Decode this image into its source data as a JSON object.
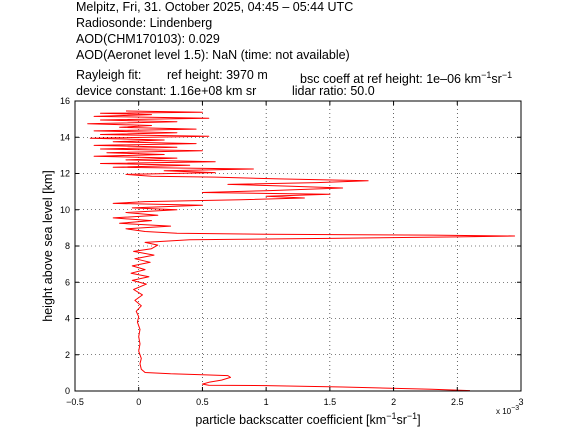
{
  "header": {
    "line1": "Melpitz, Fri, 31. October 2025, 04:45 – 05:44 UTC",
    "line2": "Radiosonde: Lindenberg",
    "line3": "AOD(CHM170103): 0.029",
    "line4": "AOD(Aeronet level 1.5): NaN   (time: not available)",
    "rayleigh_label": "Rayleigh fit:",
    "ref_height": "ref height: 3970 m",
    "bsc_coeff": "bsc coeff at ref height: 1e–06 km",
    "bsc_unit_km_exp": "−1",
    "bsc_unit_sr": "sr",
    "bsc_unit_sr_exp": "−1",
    "device_constant": "device constant: 1.16e+08 km sr",
    "lidar_ratio": "lidar ratio: 50.0"
  },
  "chart_data": {
    "type": "line",
    "xlabel_main": "particle backscatter coefficient [km",
    "xlabel_exp1": "−1",
    "xlabel_sr": "sr",
    "xlabel_exp2": "−1",
    "xlabel_close": "]",
    "x_multiplier": "x 10",
    "x_multiplier_exp": "−3",
    "ylabel": "height above sea level [km]",
    "xlim": [
      -0.5,
      3
    ],
    "ylim": [
      0,
      16
    ],
    "grid": true,
    "series_color": "#ff0000",
    "x_ticks": [
      "−0.5",
      "0",
      "0.5",
      "1",
      "1.5",
      "2",
      "2.5",
      "3"
    ],
    "y_ticks": [
      "0",
      "2",
      "4",
      "6",
      "8",
      "10",
      "12",
      "14",
      "16"
    ],
    "series": [
      {
        "points": [
          [
            2.6,
            0.02
          ],
          [
            2.3,
            0.1
          ],
          [
            1.6,
            0.22
          ],
          [
            1.0,
            0.3
          ],
          [
            0.55,
            0.32
          ],
          [
            0.5,
            0.38
          ],
          [
            0.55,
            0.48
          ],
          [
            0.65,
            0.6
          ],
          [
            0.72,
            0.75
          ],
          [
            0.7,
            0.85
          ],
          [
            0.5,
            0.9
          ],
          [
            0.25,
            0.95
          ],
          [
            0.05,
            1.02
          ],
          [
            0.02,
            1.2
          ],
          [
            0.01,
            1.5
          ],
          [
            0.02,
            1.8
          ],
          [
            0.0,
            2.2
          ],
          [
            0.01,
            2.6
          ],
          [
            0.0,
            3.0
          ],
          [
            0.01,
            3.4
          ],
          [
            -0.01,
            3.8
          ],
          [
            0.0,
            4.1
          ],
          [
            -0.02,
            4.4
          ],
          [
            0.02,
            4.7
          ],
          [
            -0.03,
            5.0
          ],
          [
            0.03,
            5.3
          ],
          [
            -0.04,
            5.6
          ],
          [
            0.06,
            5.9
          ],
          [
            -0.05,
            6.1
          ],
          [
            0.08,
            6.3
          ],
          [
            -0.06,
            6.5
          ],
          [
            0.05,
            6.7
          ],
          [
            -0.05,
            6.9
          ],
          [
            0.09,
            7.1
          ],
          [
            -0.03,
            7.3
          ],
          [
            0.12,
            7.5
          ],
          [
            -0.04,
            7.7
          ],
          [
            0.1,
            7.85
          ],
          [
            0.15,
            8.05
          ],
          [
            0.05,
            8.2
          ],
          [
            0.4,
            8.35
          ],
          [
            1.5,
            8.42
          ],
          [
            2.5,
            8.5
          ],
          [
            2.95,
            8.55
          ],
          [
            2.3,
            8.6
          ],
          [
            1.0,
            8.65
          ],
          [
            0.3,
            8.7
          ],
          [
            0.05,
            8.8
          ],
          [
            -0.1,
            8.95
          ],
          [
            0.25,
            9.1
          ],
          [
            -0.15,
            9.25
          ],
          [
            0.1,
            9.4
          ],
          [
            -0.2,
            9.55
          ],
          [
            0.15,
            9.7
          ],
          [
            -0.1,
            9.85
          ],
          [
            0.3,
            10.0
          ],
          [
            -0.05,
            10.1
          ],
          [
            0.5,
            10.25
          ],
          [
            -0.2,
            10.35
          ],
          [
            0.05,
            10.45
          ],
          [
            0.8,
            10.55
          ],
          [
            1.3,
            10.65
          ],
          [
            1.0,
            10.75
          ],
          [
            1.5,
            10.85
          ],
          [
            0.5,
            10.95
          ],
          [
            1.0,
            11.05
          ],
          [
            1.6,
            11.2
          ],
          [
            1.2,
            11.3
          ],
          [
            0.7,
            11.4
          ],
          [
            1.4,
            11.5
          ],
          [
            1.8,
            11.6
          ],
          [
            1.1,
            11.7
          ],
          [
            0.6,
            11.8
          ],
          [
            0.1,
            11.85
          ],
          [
            -0.1,
            11.95
          ],
          [
            0.6,
            12.05
          ],
          [
            0.2,
            12.15
          ],
          [
            0.9,
            12.25
          ],
          [
            -0.2,
            12.35
          ],
          [
            0.4,
            12.45
          ],
          [
            -0.3,
            12.55
          ],
          [
            0.6,
            12.65
          ],
          [
            -0.1,
            12.75
          ],
          [
            0.3,
            12.85
          ],
          [
            -0.35,
            12.95
          ],
          [
            0.2,
            13.05
          ],
          [
            -0.25,
            13.15
          ],
          [
            0.5,
            13.25
          ],
          [
            -0.3,
            13.35
          ],
          [
            0.3,
            13.45
          ],
          [
            -0.35,
            13.55
          ],
          [
            0.45,
            13.65
          ],
          [
            -0.2,
            13.75
          ],
          [
            0.2,
            13.85
          ],
          [
            -0.38,
            13.95
          ],
          [
            0.55,
            14.05
          ],
          [
            -0.3,
            14.15
          ],
          [
            0.3,
            14.25
          ],
          [
            -0.35,
            14.35
          ],
          [
            0.45,
            14.45
          ],
          [
            -0.15,
            14.55
          ],
          [
            0.1,
            14.65
          ],
          [
            -0.4,
            14.75
          ],
          [
            0.3,
            14.85
          ],
          [
            -0.3,
            14.95
          ],
          [
            0.55,
            15.05
          ],
          [
            -0.35,
            15.15
          ],
          [
            0.1,
            15.25
          ],
          [
            -0.3,
            15.32
          ],
          [
            0.5,
            15.38
          ],
          [
            -0.1,
            15.45
          ]
        ]
      }
    ]
  }
}
